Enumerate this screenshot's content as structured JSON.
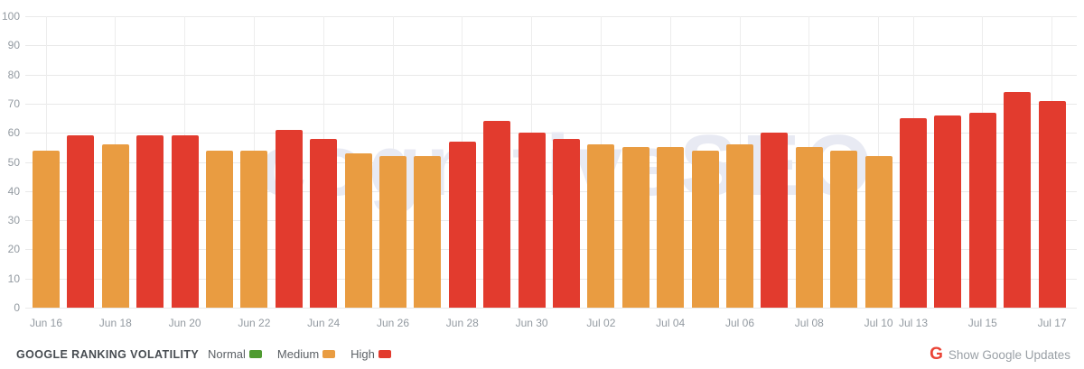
{
  "watermark": "cognitiveSEO",
  "footer": {
    "title": "GOOGLE RANKING VOLATILITY",
    "legend": [
      {
        "key": "normal",
        "label": "Normal",
        "color": "#4f9b31"
      },
      {
        "key": "medium",
        "label": "Medium",
        "color": "#e99c41"
      },
      {
        "key": "high",
        "label": "High",
        "color": "#e23b2e"
      }
    ],
    "google_updates_label": "Show Google Updates",
    "google_icon_glyph": "G",
    "google_icon_color": "#ea4335"
  },
  "chart_data": {
    "type": "bar",
    "title": "Google Ranking Volatility",
    "xlabel": "",
    "ylabel": "",
    "ylim": [
      0,
      100
    ],
    "yticks": [
      0,
      10,
      20,
      30,
      40,
      50,
      60,
      70,
      80,
      90,
      100
    ],
    "grid": true,
    "legend_position": "bottom",
    "level_colors": {
      "normal": "#4f9b31",
      "medium": "#e99c41",
      "high": "#e23b2e"
    },
    "bars": [
      {
        "date": "Jun 16",
        "value": 54,
        "level": "medium",
        "tick": true
      },
      {
        "date": "Jun 17",
        "value": 59,
        "level": "high",
        "tick": false
      },
      {
        "date": "Jun 18",
        "value": 56,
        "level": "medium",
        "tick": true
      },
      {
        "date": "Jun 19",
        "value": 59,
        "level": "high",
        "tick": false
      },
      {
        "date": "Jun 20",
        "value": 59,
        "level": "high",
        "tick": true
      },
      {
        "date": "Jun 21",
        "value": 54,
        "level": "medium",
        "tick": false
      },
      {
        "date": "Jun 22",
        "value": 54,
        "level": "medium",
        "tick": true
      },
      {
        "date": "Jun 23",
        "value": 61,
        "level": "high",
        "tick": false
      },
      {
        "date": "Jun 24",
        "value": 58,
        "level": "high",
        "tick": true
      },
      {
        "date": "Jun 25",
        "value": 53,
        "level": "medium",
        "tick": false
      },
      {
        "date": "Jun 26",
        "value": 52,
        "level": "medium",
        "tick": true
      },
      {
        "date": "Jun 27",
        "value": 52,
        "level": "medium",
        "tick": false
      },
      {
        "date": "Jun 28",
        "value": 57,
        "level": "high",
        "tick": true
      },
      {
        "date": "Jun 29",
        "value": 64,
        "level": "high",
        "tick": false
      },
      {
        "date": "Jun 30",
        "value": 60,
        "level": "high",
        "tick": true
      },
      {
        "date": "Jul 01",
        "value": 58,
        "level": "high",
        "tick": false
      },
      {
        "date": "Jul 02",
        "value": 56,
        "level": "medium",
        "tick": true
      },
      {
        "date": "Jul 03",
        "value": 55,
        "level": "medium",
        "tick": false
      },
      {
        "date": "Jul 04",
        "value": 55,
        "level": "medium",
        "tick": true
      },
      {
        "date": "Jul 05",
        "value": 54,
        "level": "medium",
        "tick": false
      },
      {
        "date": "Jul 06",
        "value": 56,
        "level": "medium",
        "tick": true
      },
      {
        "date": "Jul 07",
        "value": 60,
        "level": "high",
        "tick": false
      },
      {
        "date": "Jul 08",
        "value": 55,
        "level": "medium",
        "tick": true
      },
      {
        "date": "Jul 09",
        "value": 54,
        "level": "medium",
        "tick": false
      },
      {
        "date": "Jul 10",
        "value": 52,
        "level": "medium",
        "tick": true
      },
      {
        "date": "Jul 13",
        "value": 65,
        "level": "high",
        "tick": true
      },
      {
        "date": "Jul 14",
        "value": 66,
        "level": "high",
        "tick": false
      },
      {
        "date": "Jul 15",
        "value": 67,
        "level": "high",
        "tick": true
      },
      {
        "date": "Jul 16",
        "value": 74,
        "level": "high",
        "tick": false
      },
      {
        "date": "Jul 17",
        "value": 71,
        "level": "high",
        "tick": true
      }
    ]
  }
}
